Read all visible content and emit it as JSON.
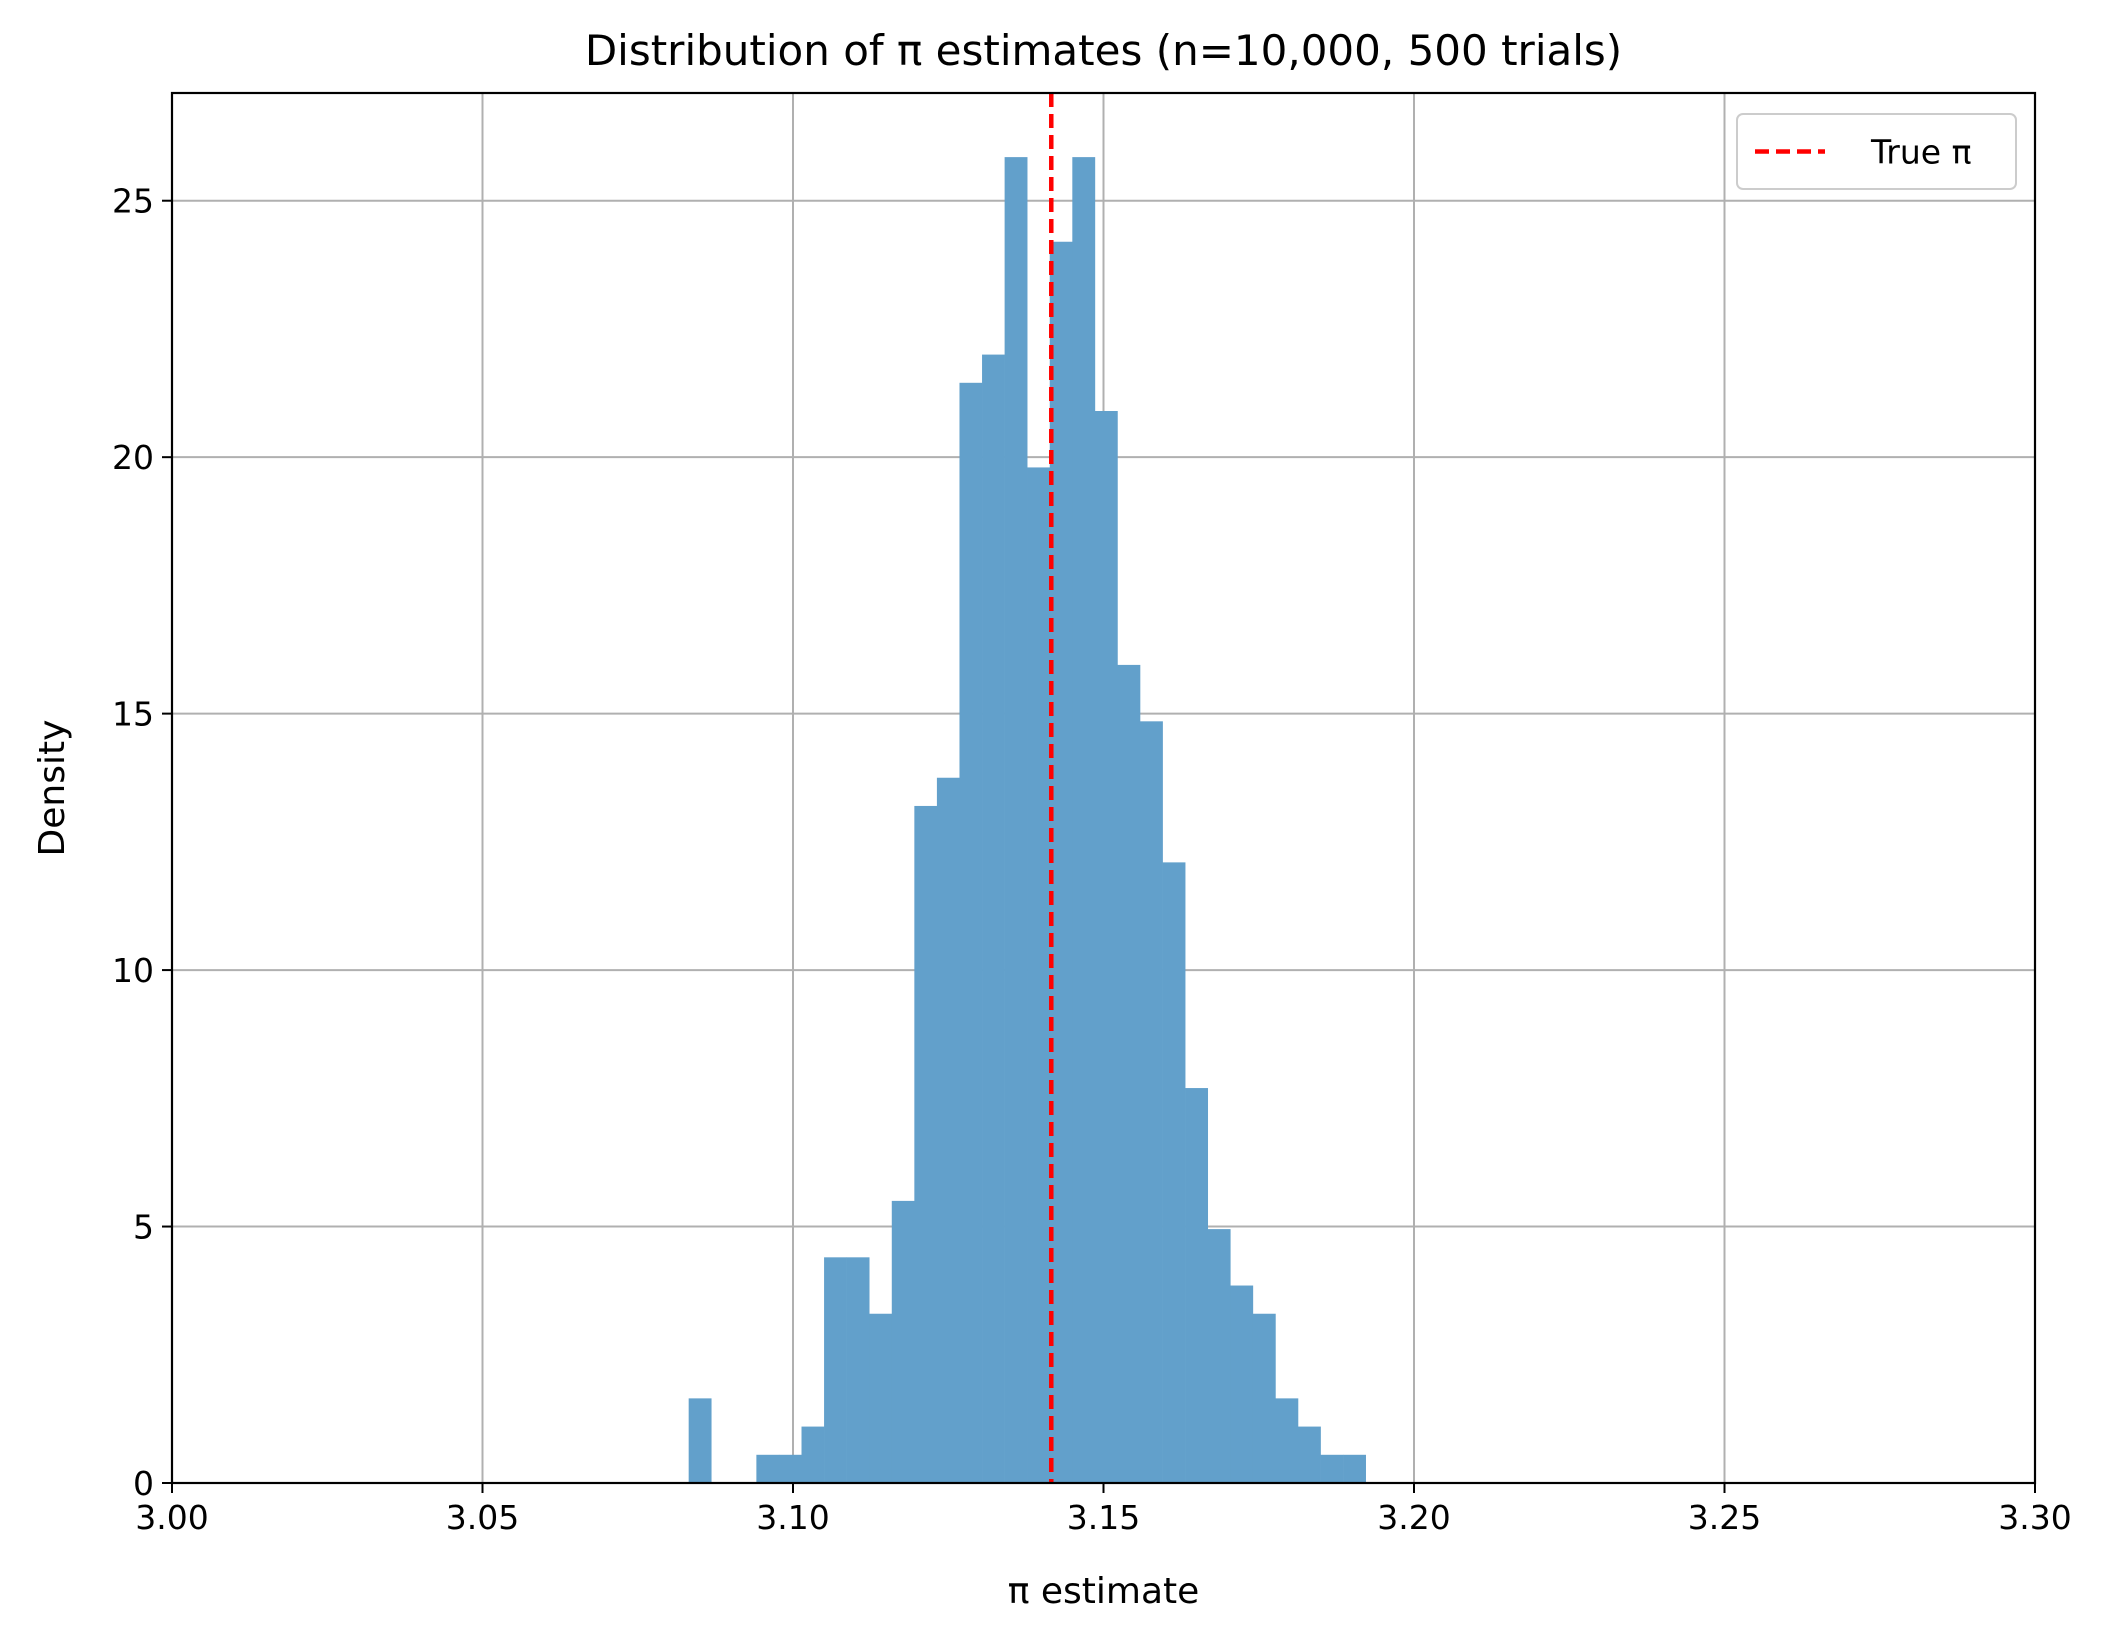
{
  "chart_data": {
    "type": "bar",
    "subtype": "histogram",
    "title": "Distribution of π estimates (n=10,000, 500 trials)",
    "xlabel": "π estimate",
    "ylabel": "Density",
    "xlim": [
      3.0,
      3.3
    ],
    "ylim": [
      0,
      27.1
    ],
    "xticks": [
      3.0,
      3.05,
      3.1,
      3.15,
      3.2,
      3.25,
      3.3
    ],
    "xtick_labels": [
      "3.00",
      "3.05",
      "3.10",
      "3.15",
      "3.20",
      "3.25",
      "3.30"
    ],
    "yticks": [
      0,
      5,
      10,
      15,
      20,
      25
    ],
    "ytick_labels": [
      "0",
      "5",
      "10",
      "15",
      "20",
      "25"
    ],
    "grid": true,
    "legend": {
      "placement": "top-right",
      "entries": [
        {
          "label": "True π",
          "style": "dashed",
          "color": "#ff0000"
        }
      ]
    },
    "bin_start": 3.0832,
    "bin_width": 0.003634,
    "values": [
      1.65,
      0,
      0,
      0.55,
      0.55,
      1.1,
      4.4,
      4.4,
      3.3,
      5.5,
      13.2,
      13.75,
      21.45,
      22.0,
      25.85,
      19.8,
      24.2,
      25.85,
      20.9,
      15.95,
      14.85,
      12.1,
      7.7,
      4.95,
      3.85,
      3.3,
      1.65,
      1.1,
      0.55,
      0.55
    ],
    "bar_color": "#62a0cb",
    "reference_line": {
      "label": "True π",
      "x": 3.14159,
      "color": "#ff0000",
      "style": "dashed"
    }
  }
}
